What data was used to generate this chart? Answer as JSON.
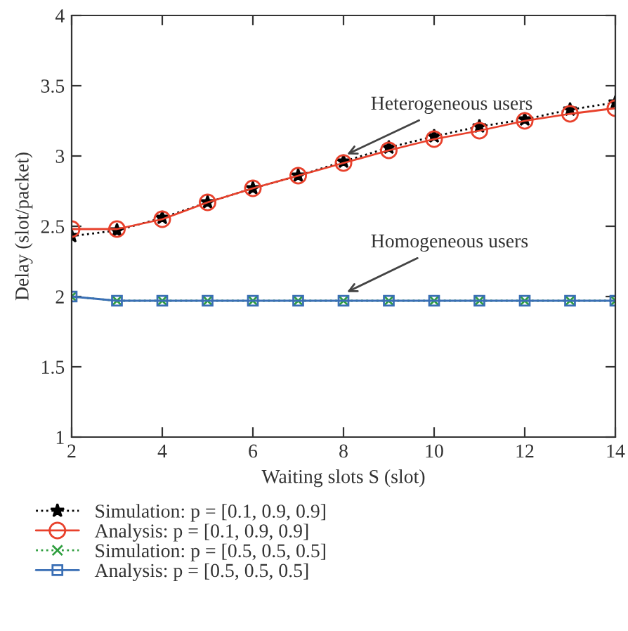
{
  "chart_data": {
    "type": "line",
    "xlabel": "Waiting slots S (slot)",
    "ylabel": "Delay (slot/packet)",
    "x": [
      2,
      3,
      4,
      5,
      6,
      7,
      8,
      9,
      10,
      11,
      12,
      13,
      14
    ],
    "series": [
      {
        "name": "Simulation: p = [0.1, 0.9, 0.9]",
        "color": "#000000",
        "marker": "star",
        "line_style": "dotted",
        "values": [
          2.43,
          2.47,
          2.56,
          2.67,
          2.77,
          2.86,
          2.96,
          3.06,
          3.14,
          3.21,
          3.26,
          3.33,
          3.38
        ]
      },
      {
        "name": "Analysis: p = [0.1, 0.9, 0.9]",
        "color": "#e8412c",
        "marker": "circle",
        "line_style": "solid",
        "values": [
          2.48,
          2.48,
          2.55,
          2.67,
          2.77,
          2.86,
          2.95,
          3.04,
          3.12,
          3.18,
          3.25,
          3.3,
          3.34
        ]
      },
      {
        "name": "Simulation: p = [0.5, 0.5, 0.5]",
        "color": "#2e9e3e",
        "marker": "cross",
        "line_style": "dotted",
        "values": [
          2.0,
          1.97,
          1.97,
          1.97,
          1.97,
          1.97,
          1.97,
          1.97,
          1.97,
          1.97,
          1.97,
          1.97,
          1.97
        ]
      },
      {
        "name": "Analysis: p = [0.5, 0.5, 0.5]",
        "color": "#3a6fb5",
        "marker": "square",
        "line_style": "solid",
        "values": [
          2.0,
          1.97,
          1.97,
          1.97,
          1.97,
          1.97,
          1.97,
          1.97,
          1.97,
          1.97,
          1.97,
          1.97,
          1.97
        ]
      }
    ],
    "xlim": [
      2,
      14
    ],
    "xticks": [
      2,
      4,
      6,
      8,
      10,
      12,
      14
    ],
    "ylim": [
      1,
      4
    ],
    "yticks": [
      1,
      1.5,
      2,
      2.5,
      3,
      3.5,
      4
    ],
    "annotations": [
      {
        "text": "Heterogeneous users",
        "x": 8,
        "y": 3.0
      },
      {
        "text": "Homogeneous users",
        "x": 8,
        "y": 2.02
      }
    ],
    "grid": false,
    "legend": "bottom"
  }
}
